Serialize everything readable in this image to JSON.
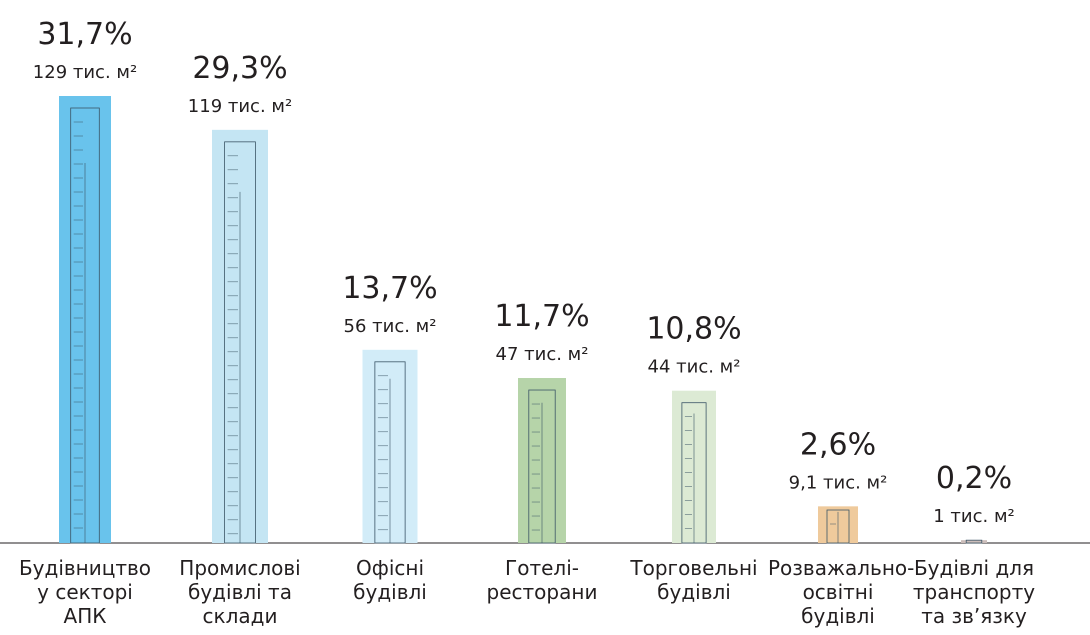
{
  "chart_data": {
    "type": "building-bar",
    "categories": [
      "Будівництво у секторі АПК",
      "Промислові будівлі та склади",
      "Офісні будівлі",
      "Готелі-ресторани",
      "Торговельні будівлі",
      "Розважально-освітні будівлі",
      "Будівлі для транспорту та зв’язку"
    ],
    "values": [
      31.7,
      29.3,
      13.7,
      11.7,
      10.8,
      2.6,
      0.2
    ],
    "value_labels": [
      "31,7%",
      "29,3%",
      "13,7%",
      "11,7%",
      "10,8%",
      "2,6%",
      "0,2%"
    ],
    "area_values": [
      129,
      119,
      56,
      47,
      44,
      9.1,
      1
    ],
    "area_labels": [
      "129 тис. м²",
      "119 тис. м²",
      "56 тис. м²",
      "47 тис. м²",
      "44 тис. м²",
      "9,1 тис. м²",
      "1 тис. м²"
    ],
    "colors": [
      "#69c3ec",
      "#c4e5f3",
      "#d2ecf8",
      "#b6d4a9",
      "#dcead4",
      "#efca9c",
      "#cbbdba"
    ]
  }
}
